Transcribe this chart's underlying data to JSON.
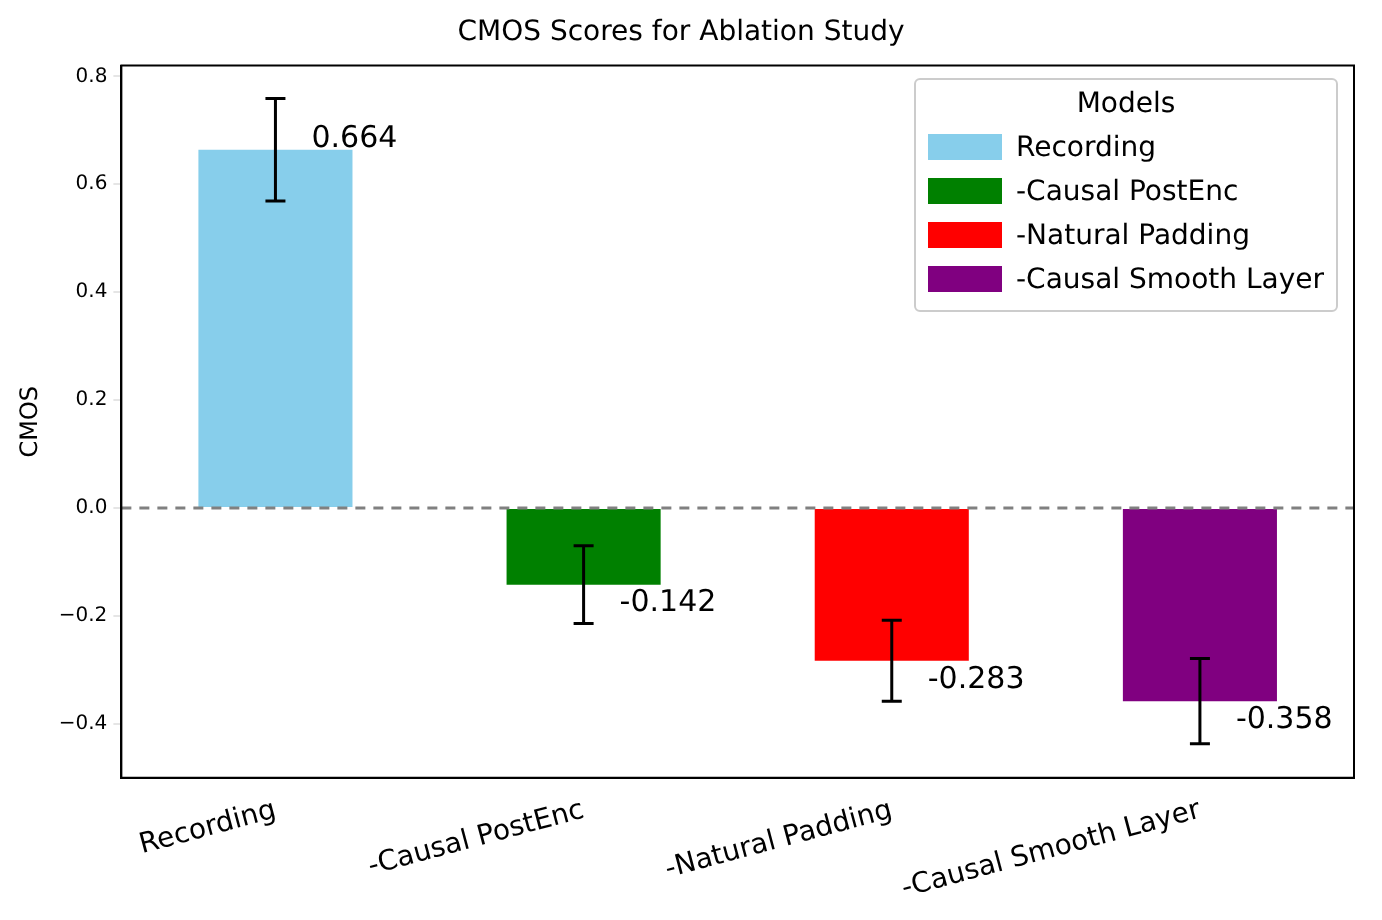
{
  "chart_data": {
    "type": "bar",
    "title": "CMOS Scores for Ablation Study",
    "ylabel": "CMOS",
    "legend_title": "Models",
    "categories": [
      "Recording",
      "-Causal PostEnc",
      "-Natural Padding",
      "-Causal Smooth Layer"
    ],
    "series": [
      {
        "name": "Recording",
        "color": "#87ceeb",
        "values": [
          0.664,
          null,
          null,
          null
        ],
        "errors": [
          0.095,
          null,
          null,
          null
        ]
      },
      {
        "name": "-Causal PostEnc",
        "color": "#008000",
        "values": [
          null,
          -0.142,
          null,
          null
        ],
        "errors": [
          null,
          0.072,
          null,
          null
        ]
      },
      {
        "name": "-Natural Padding",
        "color": "#ff0000",
        "values": [
          null,
          null,
          -0.283,
          null
        ],
        "errors": [
          null,
          null,
          0.075,
          null
        ]
      },
      {
        "name": "-Causal Smooth Layer",
        "color": "#800080",
        "values": [
          null,
          null,
          null,
          -0.358
        ],
        "errors": [
          null,
          null,
          null,
          0.079
        ]
      }
    ],
    "data_labels": true,
    "ylim": [
      -0.5,
      0.82
    ],
    "yticks": [
      {
        "value": -0.4,
        "label": "−0.4"
      },
      {
        "value": -0.2,
        "label": "−0.2"
      },
      {
        "value": 0,
        "label": "0.0"
      },
      {
        "value": 0.2,
        "label": "0.2"
      },
      {
        "value": 0.4,
        "label": "0.4"
      },
      {
        "value": 0.6,
        "label": "0.6"
      },
      {
        "value": 0.8,
        "label": "0.8"
      }
    ],
    "ref_lines": [
      {
        "axis": "y",
        "value": 0,
        "color": "#808080",
        "line_style": "dashed"
      }
    ],
    "legend": "top right",
    "grid": false
  }
}
